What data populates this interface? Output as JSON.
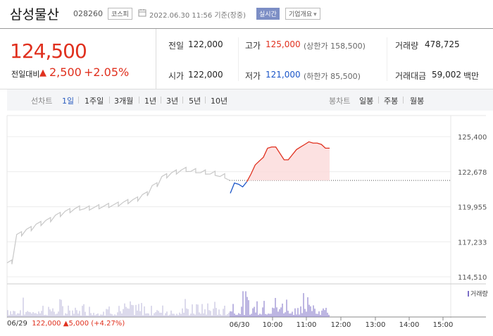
{
  "header": {
    "name": "삼성물산",
    "code": "028260",
    "market": "코스피",
    "datetime": "2022.06.30 11:56 기준(장중)",
    "realtime": "실시간",
    "company_info": "기업개요"
  },
  "summary": {
    "price": "124,500",
    "change_label": "전일대비",
    "change": "2,500",
    "change_pct": "+2.05%",
    "prev_close_label": "전일",
    "prev_close": "122,000",
    "open_label": "시가",
    "open": "122,000",
    "high_label": "고가",
    "high": "125,000",
    "upper_limit": "(상한가 158,500)",
    "low_label": "저가",
    "low": "121,000",
    "lower_limit": "(하한가 85,500)",
    "volume_label": "거래량",
    "volume": "478,725",
    "amount_label": "거래대금",
    "amount": "59,002",
    "amount_unit": "백만"
  },
  "periods": {
    "line_title": "선차트",
    "line_items": [
      "1일",
      "1주일",
      "3개월",
      "1년",
      "3년",
      "5년",
      "10년"
    ],
    "selected": "1일",
    "candle_title": "봉차트",
    "candle_items": [
      "일봉",
      "주봉",
      "월봉"
    ]
  },
  "colors": {
    "up": "#e0301e",
    "down": "#1a55c8",
    "prev": "#c8c8c8",
    "volume": "#7b6ec6"
  },
  "chart_data": {
    "type": "line",
    "y_ticks": [
      "125,400",
      "122,678",
      "119,955",
      "117,233",
      "114,510"
    ],
    "ylim": [
      114510,
      125400
    ],
    "x_ticks": [
      "06/29",
      "06/30",
      "10:00",
      "11:00",
      "12:00",
      "13:00",
      "14:00",
      "15:00"
    ],
    "prev_close": 122000,
    "series": [
      {
        "values": [
          115600,
          117800,
          118200,
          118600,
          118900,
          119300,
          119600,
          119800,
          119800,
          119900,
          120000,
          120100,
          120300,
          120500,
          120900,
          121600,
          122300,
          122600,
          122800,
          122700,
          122600,
          122500,
          122300,
          122000
        ]
      },
      {
        "values": [
          121000,
          121800,
          121700,
          121500,
          121900,
          122500,
          123200,
          123500,
          123800,
          124500,
          124600,
          124600,
          124100,
          123600,
          123600,
          124000,
          124400,
          124600,
          124800,
          125000,
          124900,
          124900,
          124800,
          124500,
          124500
        ]
      }
    ],
    "volume_legend": "거래량",
    "prev_day_summary": {
      "close": "122,000",
      "change": "5,000",
      "change_pct": "(+4.27%)"
    }
  }
}
